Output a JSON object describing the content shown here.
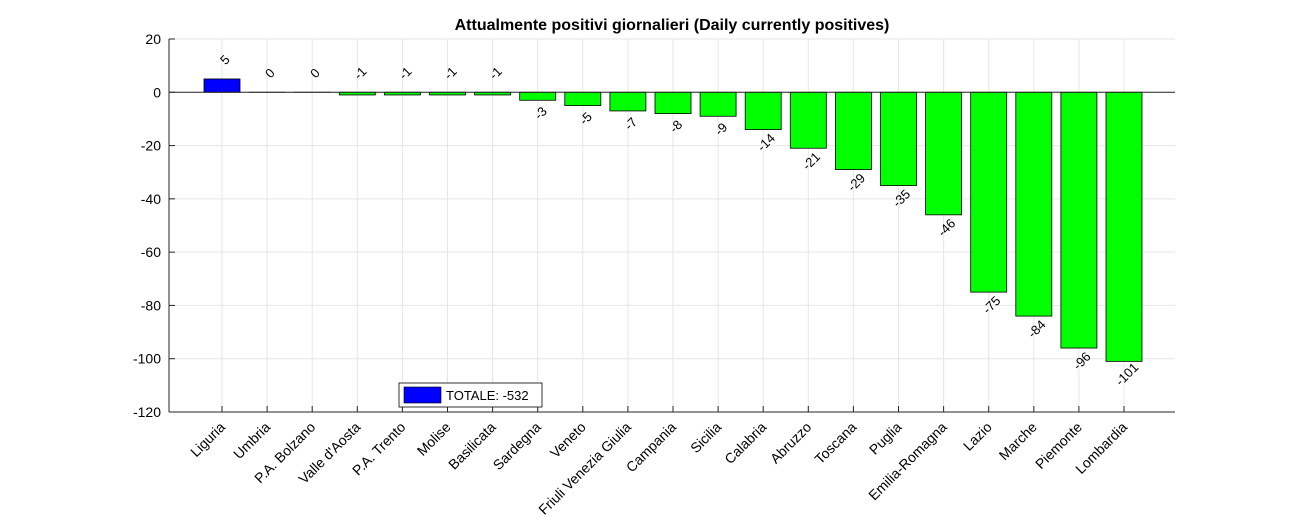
{
  "chart_data": {
    "type": "bar",
    "title": "Attualmente positivi giornalieri (Daily currently positives)",
    "xlabel": "",
    "ylabel": "",
    "ylim": [
      -120,
      20
    ],
    "yticks": [
      20,
      0,
      -20,
      -40,
      -60,
      -80,
      -100,
      -120
    ],
    "grid": true,
    "categories": [
      "Liguria",
      "Umbria",
      "P.A. Bolzano",
      "Valle d'Aosta",
      "P.A. Trento",
      "Molise",
      "Basilicata",
      "Sardegna",
      "Veneto",
      "Friuli Venezia Giulia",
      "Campania",
      "Sicilia",
      "Calabria",
      "Abruzzo",
      "Toscana",
      "Puglia",
      "Emilia-Romagna",
      "Lazio",
      "Marche",
      "Piemonte",
      "Lombardia"
    ],
    "values": [
      5,
      0,
      0,
      -1,
      -1,
      -1,
      -1,
      -3,
      -5,
      -7,
      -8,
      -9,
      -14,
      -21,
      -29,
      -35,
      -46,
      -75,
      -84,
      -96,
      -101
    ],
    "colors": {
      "positive": "#0000ff",
      "negative": "#00ff00"
    },
    "legend": {
      "label": "TOTALE: -532",
      "placement": "bottom-center",
      "color": "#0000ff"
    }
  }
}
